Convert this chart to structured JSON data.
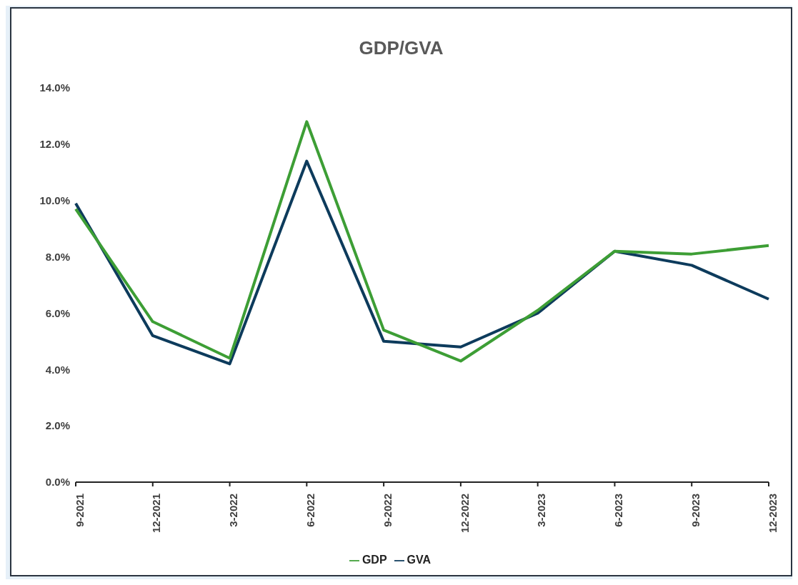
{
  "chart_data": {
    "type": "line",
    "title": "GDP/GVA",
    "categories": [
      "9-2021",
      "12-2021",
      "3-2022",
      "6-2022",
      "9-2022",
      "12-2022",
      "3-2023",
      "6-2023",
      "9-2023",
      "12-2023"
    ],
    "series": [
      {
        "name": "GVA",
        "color": "#0d3b5c",
        "values": [
          9.9,
          5.2,
          4.2,
          11.4,
          5.0,
          4.8,
          6.0,
          8.2,
          7.7,
          6.5
        ]
      },
      {
        "name": "GDP",
        "color": "#3d9e35",
        "values": [
          9.7,
          5.7,
          4.4,
          12.8,
          5.4,
          4.3,
          6.1,
          8.2,
          8.1,
          8.4
        ]
      }
    ],
    "ylim": [
      0,
      14
    ],
    "yticks": [
      {
        "value": 0,
        "label": "0.0%"
      },
      {
        "value": 2,
        "label": "2.0%"
      },
      {
        "value": 4,
        "label": "4.0%"
      },
      {
        "value": 6,
        "label": "6.0%"
      },
      {
        "value": 8,
        "label": "8.0%"
      },
      {
        "value": 10,
        "label": "10.0%"
      },
      {
        "value": 12,
        "label": "12.0%"
      },
      {
        "value": 14,
        "label": "14.0%"
      }
    ],
    "grid": false,
    "legend": "bottom",
    "marker": "none",
    "line_style": "solid"
  }
}
